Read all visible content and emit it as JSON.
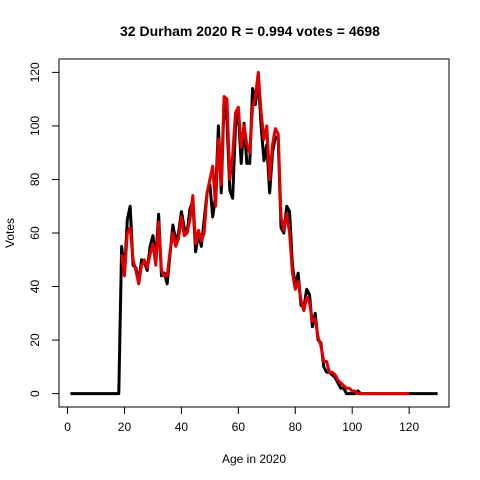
{
  "chart_data": {
    "type": "line",
    "title": "32 Durham 2020 R = 0.994 votes = 4698",
    "xlabel": "Age in 2020",
    "ylabel": "Votes",
    "xlim": [
      -3,
      134
    ],
    "ylim": [
      -5,
      125
    ],
    "xticks": [
      0,
      20,
      40,
      60,
      80,
      100,
      120
    ],
    "yticks": [
      0,
      20,
      40,
      60,
      80,
      100,
      120
    ],
    "grid": false,
    "legend": "none",
    "series": [
      {
        "color": "#000000",
        "points": [
          [
            1,
            0
          ],
          [
            18,
            0
          ],
          [
            19,
            55
          ],
          [
            20,
            45
          ],
          [
            21,
            65
          ],
          [
            22,
            70
          ],
          [
            23,
            48
          ],
          [
            24,
            47
          ],
          [
            25,
            42
          ],
          [
            26,
            50
          ],
          [
            27,
            49
          ],
          [
            28,
            46
          ],
          [
            29,
            55
          ],
          [
            30,
            59
          ],
          [
            31,
            50
          ],
          [
            32,
            67
          ],
          [
            33,
            44
          ],
          [
            34,
            45
          ],
          [
            35,
            41
          ],
          [
            36,
            52
          ],
          [
            37,
            63
          ],
          [
            38,
            57
          ],
          [
            39,
            60
          ],
          [
            40,
            68
          ],
          [
            41,
            62
          ],
          [
            42,
            60
          ],
          [
            43,
            69
          ],
          [
            44,
            72
          ],
          [
            45,
            53
          ],
          [
            46,
            60
          ],
          [
            47,
            55
          ],
          [
            48,
            65
          ],
          [
            49,
            75
          ],
          [
            50,
            78
          ],
          [
            51,
            66
          ],
          [
            52,
            74
          ],
          [
            53,
            100
          ],
          [
            54,
            75
          ],
          [
            55,
            110
          ],
          [
            56,
            102
          ],
          [
            57,
            76
          ],
          [
            58,
            73
          ],
          [
            59,
            100
          ],
          [
            60,
            105
          ],
          [
            61,
            86
          ],
          [
            62,
            101
          ],
          [
            63,
            86
          ],
          [
            64,
            86
          ],
          [
            65,
            114
          ],
          [
            66,
            108
          ],
          [
            67,
            118
          ],
          [
            68,
            100
          ],
          [
            69,
            87
          ],
          [
            70,
            93
          ],
          [
            71,
            75
          ],
          [
            72,
            90
          ],
          [
            73,
            96
          ],
          [
            74,
            95
          ],
          [
            75,
            62
          ],
          [
            76,
            60
          ],
          [
            77,
            70
          ],
          [
            78,
            68
          ],
          [
            79,
            48
          ],
          [
            80,
            40
          ],
          [
            81,
            45
          ],
          [
            82,
            33
          ],
          [
            83,
            32
          ],
          [
            84,
            39
          ],
          [
            85,
            37
          ],
          [
            86,
            25
          ],
          [
            87,
            30
          ],
          [
            88,
            20
          ],
          [
            89,
            19
          ],
          [
            90,
            10
          ],
          [
            91,
            8
          ],
          [
            92,
            8
          ],
          [
            93,
            7
          ],
          [
            94,
            6
          ],
          [
            95,
            4
          ],
          [
            96,
            2
          ],
          [
            97,
            2
          ],
          [
            98,
            0
          ],
          [
            99,
            0
          ],
          [
            100,
            0
          ],
          [
            101,
            0
          ],
          [
            102,
            1
          ],
          [
            103,
            0
          ],
          [
            105,
            0
          ],
          [
            110,
            0
          ],
          [
            115,
            0
          ],
          [
            120,
            0
          ],
          [
            125,
            0
          ],
          [
            130,
            0
          ]
        ]
      },
      {
        "color": "#e00000",
        "points": [
          [
            19,
            52
          ],
          [
            20,
            44
          ],
          [
            21,
            60
          ],
          [
            22,
            62
          ],
          [
            23,
            50
          ],
          [
            24,
            46
          ],
          [
            25,
            41
          ],
          [
            26,
            48
          ],
          [
            27,
            50
          ],
          [
            28,
            47
          ],
          [
            29,
            52
          ],
          [
            30,
            56
          ],
          [
            31,
            48
          ],
          [
            32,
            64
          ],
          [
            33,
            46
          ],
          [
            34,
            44
          ],
          [
            35,
            44
          ],
          [
            36,
            53
          ],
          [
            37,
            60
          ],
          [
            38,
            55
          ],
          [
            39,
            58
          ],
          [
            40,
            66
          ],
          [
            41,
            59
          ],
          [
            42,
            60
          ],
          [
            43,
            65
          ],
          [
            44,
            74
          ],
          [
            45,
            56
          ],
          [
            46,
            61
          ],
          [
            47,
            57
          ],
          [
            48,
            60
          ],
          [
            49,
            75
          ],
          [
            50,
            80
          ],
          [
            51,
            85
          ],
          [
            52,
            70
          ],
          [
            53,
            95
          ],
          [
            54,
            78
          ],
          [
            55,
            111
          ],
          [
            56,
            110
          ],
          [
            57,
            80
          ],
          [
            58,
            89
          ],
          [
            59,
            105
          ],
          [
            60,
            107
          ],
          [
            61,
            92
          ],
          [
            62,
            100
          ],
          [
            63,
            93
          ],
          [
            64,
            90
          ],
          [
            65,
            107
          ],
          [
            66,
            111
          ],
          [
            67,
            120
          ],
          [
            68,
            105
          ],
          [
            69,
            95
          ],
          [
            70,
            100
          ],
          [
            71,
            80
          ],
          [
            72,
            93
          ],
          [
            73,
            99
          ],
          [
            74,
            97
          ],
          [
            75,
            66
          ],
          [
            76,
            61
          ],
          [
            77,
            67
          ],
          [
            78,
            60
          ],
          [
            79,
            45
          ],
          [
            80,
            39
          ],
          [
            81,
            42
          ],
          [
            82,
            35
          ],
          [
            83,
            31
          ],
          [
            84,
            36
          ],
          [
            85,
            34
          ],
          [
            86,
            27
          ],
          [
            87,
            28
          ],
          [
            88,
            21
          ],
          [
            89,
            18
          ],
          [
            90,
            12
          ],
          [
            91,
            12
          ],
          [
            92,
            8
          ],
          [
            93,
            8
          ],
          [
            94,
            7
          ],
          [
            95,
            5
          ],
          [
            96,
            4
          ],
          [
            97,
            3
          ],
          [
            98,
            2
          ],
          [
            99,
            2
          ],
          [
            100,
            1
          ],
          [
            101,
            1
          ],
          [
            102,
            0
          ],
          [
            103,
            0
          ],
          [
            104,
            0
          ],
          [
            105,
            0
          ],
          [
            106,
            0
          ],
          [
            107,
            0
          ],
          [
            108,
            0
          ],
          [
            109,
            0
          ],
          [
            110,
            0
          ],
          [
            111,
            0
          ],
          [
            118,
            0
          ],
          [
            119,
            0
          ],
          [
            120,
            0
          ]
        ]
      }
    ]
  }
}
